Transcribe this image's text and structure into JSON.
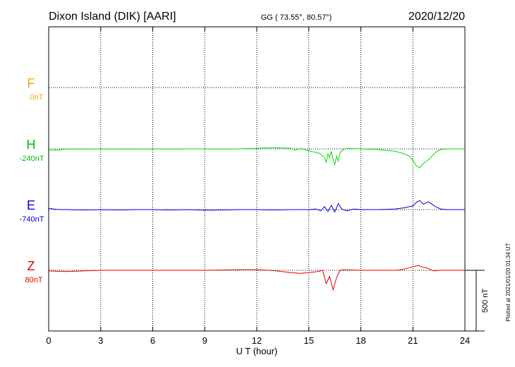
{
  "header": {
    "station": "Dixon Island (DIK)  [AARI]",
    "coords": "GG ( 73.55°,  80.57°)",
    "date": "2020/12/20"
  },
  "footer": {
    "plotted": "Plotted at 2021/01/20 01:34 UT",
    "scale_label": "500 nT"
  },
  "colors": {
    "F": "#ffa500",
    "H": "#00e000",
    "E": "#0000dd",
    "Z": "#e00000",
    "axis": "#000000"
  },
  "chart_data": {
    "type": "line",
    "xlabel": "U T (hour)",
    "x_ticks": [
      "0",
      "3",
      "6",
      "9",
      "12",
      "15",
      "18",
      "21",
      "24"
    ],
    "xlim": [
      0,
      24
    ],
    "ylabel": "",
    "scale_nT": 500,
    "series": [
      {
        "name": "F",
        "offset_label": "0nT",
        "baseline_nT": 0,
        "points": []
      },
      {
        "name": "H",
        "offset_label": "-240nT",
        "baseline_nT": -240,
        "points": [
          [
            0,
            -10
          ],
          [
            0.5,
            -10
          ],
          [
            1,
            -2
          ],
          [
            2,
            -2
          ],
          [
            3,
            0
          ],
          [
            4,
            -2
          ],
          [
            5,
            -2
          ],
          [
            6,
            0
          ],
          [
            7,
            -2
          ],
          [
            8,
            0
          ],
          [
            9,
            0
          ],
          [
            10,
            -2
          ],
          [
            11,
            0
          ],
          [
            12,
            5
          ],
          [
            13,
            10
          ],
          [
            14,
            5
          ],
          [
            14.2,
            -10
          ],
          [
            14.5,
            5
          ],
          [
            15,
            -15
          ],
          [
            15.3,
            -25
          ],
          [
            15.6,
            -35
          ],
          [
            15.9,
            -70
          ],
          [
            16.0,
            -110
          ],
          [
            16.1,
            -40
          ],
          [
            16.2,
            -70
          ],
          [
            16.3,
            -20
          ],
          [
            16.4,
            -90
          ],
          [
            16.5,
            -130
          ],
          [
            16.6,
            -60
          ],
          [
            16.7,
            -100
          ],
          [
            16.8,
            -30
          ],
          [
            17.0,
            -5
          ],
          [
            17.3,
            5
          ],
          [
            17.6,
            2
          ],
          [
            18,
            0
          ],
          [
            19,
            -5
          ],
          [
            20,
            -20
          ],
          [
            20.5,
            -40
          ],
          [
            20.8,
            -60
          ],
          [
            21.0,
            -90
          ],
          [
            21.2,
            -140
          ],
          [
            21.4,
            -155
          ],
          [
            21.6,
            -120
          ],
          [
            21.9,
            -90
          ],
          [
            22.1,
            -60
          ],
          [
            22.3,
            -30
          ],
          [
            22.6,
            -5
          ],
          [
            23,
            0
          ],
          [
            24,
            0
          ]
        ]
      },
      {
        "name": "E",
        "offset_label": "-740nT",
        "baseline_nT": -740,
        "points": [
          [
            0,
            10
          ],
          [
            0.5,
            2
          ],
          [
            1,
            0
          ],
          [
            2,
            -3
          ],
          [
            3,
            0
          ],
          [
            4,
            -3
          ],
          [
            5,
            0
          ],
          [
            6,
            0
          ],
          [
            7,
            -3
          ],
          [
            8,
            0
          ],
          [
            9,
            -5
          ],
          [
            10,
            -3
          ],
          [
            11,
            0
          ],
          [
            12,
            0
          ],
          [
            13,
            -3
          ],
          [
            14,
            0
          ],
          [
            15,
            0
          ],
          [
            15.4,
            5
          ],
          [
            15.7,
            -10
          ],
          [
            15.9,
            25
          ],
          [
            16.1,
            -15
          ],
          [
            16.3,
            35
          ],
          [
            16.5,
            -20
          ],
          [
            16.7,
            50
          ],
          [
            16.9,
            5
          ],
          [
            17.2,
            -10
          ],
          [
            17.6,
            5
          ],
          [
            18,
            0
          ],
          [
            19,
            0
          ],
          [
            20,
            5
          ],
          [
            20.5,
            15
          ],
          [
            21,
            30
          ],
          [
            21.2,
            60
          ],
          [
            21.4,
            75
          ],
          [
            21.6,
            45
          ],
          [
            21.9,
            65
          ],
          [
            22.1,
            45
          ],
          [
            22.3,
            25
          ],
          [
            22.6,
            5
          ],
          [
            23,
            0
          ],
          [
            24,
            0
          ]
        ]
      },
      {
        "name": "Z",
        "offset_label": "80nT",
        "baseline_nT": 80,
        "points": [
          [
            0,
            -5
          ],
          [
            1,
            -10
          ],
          [
            2,
            -5
          ],
          [
            3,
            0
          ],
          [
            5,
            0
          ],
          [
            7,
            0
          ],
          [
            9,
            0
          ],
          [
            11,
            5
          ],
          [
            12,
            5
          ],
          [
            13,
            -3
          ],
          [
            14,
            -20
          ],
          [
            14.5,
            -25
          ],
          [
            15,
            -20
          ],
          [
            15.5,
            -10
          ],
          [
            15.8,
            0
          ],
          [
            16.0,
            -110
          ],
          [
            16.2,
            -50
          ],
          [
            16.4,
            -160
          ],
          [
            16.6,
            -60
          ],
          [
            16.8,
            0
          ],
          [
            17,
            5
          ],
          [
            18,
            0
          ],
          [
            19,
            0
          ],
          [
            20,
            0
          ],
          [
            20.5,
            10
          ],
          [
            21,
            30
          ],
          [
            21.3,
            40
          ],
          [
            21.6,
            25
          ],
          [
            21.8,
            20
          ],
          [
            22.2,
            -5
          ],
          [
            22.6,
            0
          ],
          [
            23,
            0
          ],
          [
            24,
            0
          ]
        ]
      }
    ]
  }
}
